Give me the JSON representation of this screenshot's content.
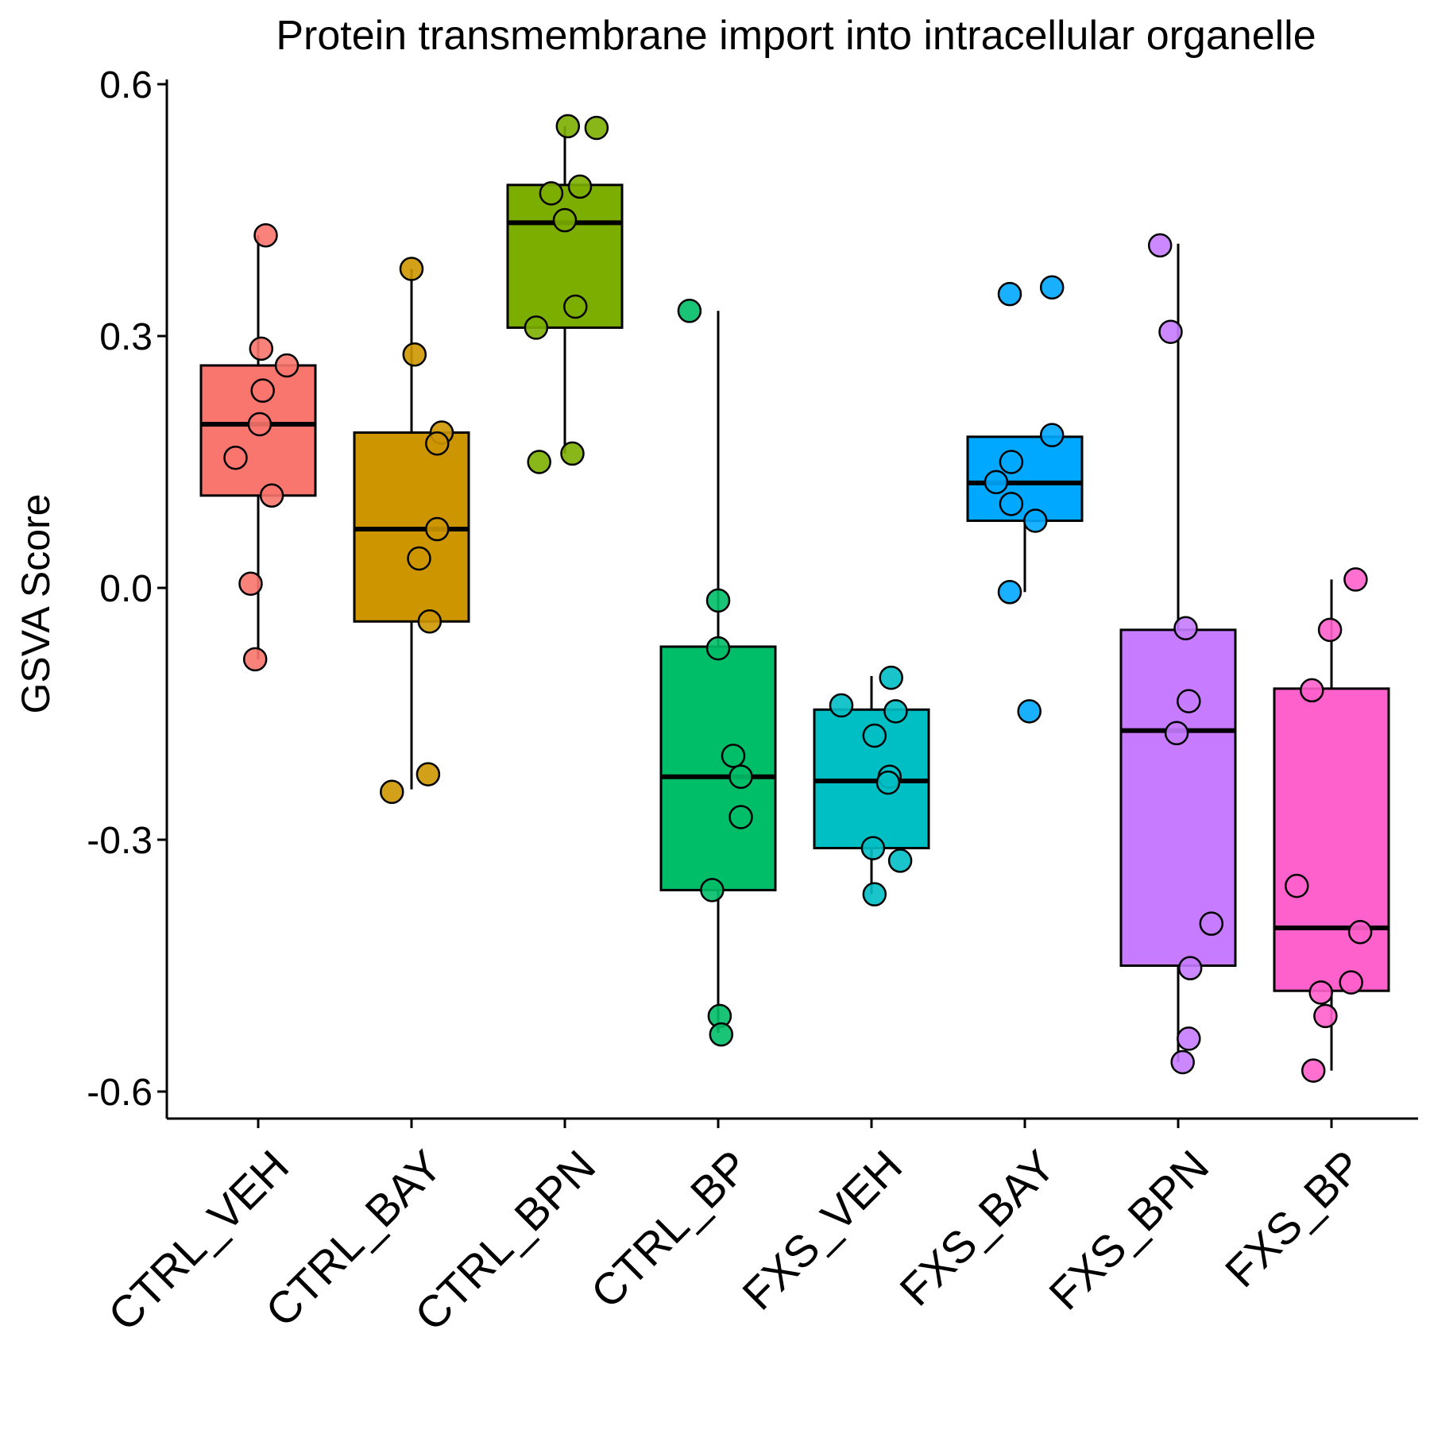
{
  "chart_data": {
    "type": "box",
    "title": "Protein transmembrane import into intracellular organelle",
    "xlabel": "",
    "ylabel": "GSVA Score",
    "ylim": [
      -0.635,
      0.6
    ],
    "yticks": [
      -0.6,
      -0.3,
      0.0,
      0.3,
      0.6
    ],
    "ytick_labels": [
      "-0.6",
      "-0.3",
      "0.0",
      "0.3",
      "0.6"
    ],
    "legend": "none",
    "grid": false,
    "categories": [
      "CTRL_VEH",
      "CTRL_BAY",
      "CTRL_BPN",
      "CTRL_BP",
      "FXS_VEH",
      "FXS_BAY",
      "FXS_BPN",
      "FXS_BP"
    ],
    "colors": [
      "#F8766D",
      "#CD9600",
      "#7CAE00",
      "#00BE67",
      "#00BFC4",
      "#00A9FF",
      "#C77CFF",
      "#FF61CC"
    ],
    "boxes": [
      {
        "whisker_low": -0.085,
        "q1": 0.11,
        "median": 0.195,
        "q3": 0.265,
        "whisker_high": 0.42
      },
      {
        "whisker_low": -0.24,
        "q1": -0.04,
        "median": 0.07,
        "q3": 0.185,
        "whisker_high": 0.38
      },
      {
        "whisker_low": 0.16,
        "q1": 0.31,
        "median": 0.435,
        "q3": 0.48,
        "whisker_high": 0.55
      },
      {
        "whisker_low": -0.53,
        "q1": -0.36,
        "median": -0.225,
        "q3": -0.07,
        "whisker_high": 0.33
      },
      {
        "whisker_low": -0.365,
        "q1": -0.31,
        "median": -0.23,
        "q3": -0.145,
        "whisker_high": -0.105
      },
      {
        "whisker_low": -0.005,
        "q1": 0.08,
        "median": 0.125,
        "q3": 0.18,
        "whisker_high": 0.18
      },
      {
        "whisker_low": -0.565,
        "q1": -0.45,
        "median": -0.17,
        "q3": -0.05,
        "whisker_high": 0.41
      },
      {
        "whisker_low": -0.575,
        "q1": -0.48,
        "median": -0.405,
        "q3": -0.12,
        "whisker_high": 0.01
      }
    ],
    "points": [
      [
        {
          "x": 0.05,
          "y": 0.42
        },
        {
          "x": 0.02,
          "y": 0.285
        },
        {
          "x": 0.19,
          "y": 0.265
        },
        {
          "x": 0.03,
          "y": 0.235
        },
        {
          "x": 0.01,
          "y": 0.195
        },
        {
          "x": -0.15,
          "y": 0.155
        },
        {
          "x": 0.09,
          "y": 0.11
        },
        {
          "x": -0.05,
          "y": 0.005
        },
        {
          "x": -0.02,
          "y": -0.085
        }
      ],
      [
        {
          "x": 0.0,
          "y": 0.38
        },
        {
          "x": 0.02,
          "y": 0.278
        },
        {
          "x": 0.2,
          "y": 0.185
        },
        {
          "x": 0.17,
          "y": 0.172
        },
        {
          "x": 0.17,
          "y": 0.07
        },
        {
          "x": 0.05,
          "y": 0.035
        },
        {
          "x": 0.12,
          "y": -0.04
        },
        {
          "x": 0.11,
          "y": -0.222
        },
        {
          "x": -0.13,
          "y": -0.243
        }
      ],
      [
        {
          "x": 0.02,
          "y": 0.55
        },
        {
          "x": 0.21,
          "y": 0.548
        },
        {
          "x": 0.1,
          "y": 0.478
        },
        {
          "x": -0.09,
          "y": 0.47
        },
        {
          "x": 0.0,
          "y": 0.438
        },
        {
          "x": 0.07,
          "y": 0.335
        },
        {
          "x": -0.19,
          "y": 0.31
        },
        {
          "x": 0.05,
          "y": 0.16
        },
        {
          "x": -0.17,
          "y": 0.15
        }
      ],
      [
        {
          "x": -0.19,
          "y": 0.33
        },
        {
          "x": 0.0,
          "y": -0.015
        },
        {
          "x": 0.0,
          "y": -0.072
        },
        {
          "x": 0.1,
          "y": -0.2
        },
        {
          "x": 0.15,
          "y": -0.225
        },
        {
          "x": 0.15,
          "y": -0.273
        },
        {
          "x": -0.04,
          "y": -0.36
        },
        {
          "x": 0.01,
          "y": -0.51
        },
        {
          "x": 0.02,
          "y": -0.532
        }
      ],
      [
        {
          "x": 0.13,
          "y": -0.107
        },
        {
          "x": -0.2,
          "y": -0.14
        },
        {
          "x": 0.16,
          "y": -0.147
        },
        {
          "x": 0.02,
          "y": -0.176
        },
        {
          "x": 0.12,
          "y": -0.225
        },
        {
          "x": 0.11,
          "y": -0.232
        },
        {
          "x": 0.01,
          "y": -0.31
        },
        {
          "x": 0.19,
          "y": -0.325
        },
        {
          "x": 0.02,
          "y": -0.365
        }
      ],
      [
        {
          "x": 0.18,
          "y": 0.358
        },
        {
          "x": -0.1,
          "y": 0.35
        },
        {
          "x": 0.18,
          "y": 0.182
        },
        {
          "x": -0.09,
          "y": 0.15
        },
        {
          "x": -0.19,
          "y": 0.126
        },
        {
          "x": -0.09,
          "y": 0.1
        },
        {
          "x": 0.07,
          "y": 0.08
        },
        {
          "x": -0.1,
          "y": -0.005
        },
        {
          "x": 0.03,
          "y": -0.147
        }
      ],
      [
        {
          "x": -0.12,
          "y": 0.408
        },
        {
          "x": -0.05,
          "y": 0.305
        },
        {
          "x": 0.05,
          "y": -0.048
        },
        {
          "x": 0.07,
          "y": -0.135
        },
        {
          "x": -0.01,
          "y": -0.173
        },
        {
          "x": 0.22,
          "y": -0.4
        },
        {
          "x": 0.08,
          "y": -0.453
        },
        {
          "x": 0.07,
          "y": -0.537
        },
        {
          "x": 0.03,
          "y": -0.565
        }
      ],
      [
        {
          "x": 0.16,
          "y": 0.01
        },
        {
          "x": -0.01,
          "y": -0.05
        },
        {
          "x": -0.13,
          "y": -0.122
        },
        {
          "x": -0.23,
          "y": -0.355
        },
        {
          "x": 0.19,
          "y": -0.41
        },
        {
          "x": 0.13,
          "y": -0.47
        },
        {
          "x": -0.07,
          "y": -0.482
        },
        {
          "x": -0.04,
          "y": -0.51
        },
        {
          "x": -0.12,
          "y": -0.575
        }
      ]
    ]
  }
}
